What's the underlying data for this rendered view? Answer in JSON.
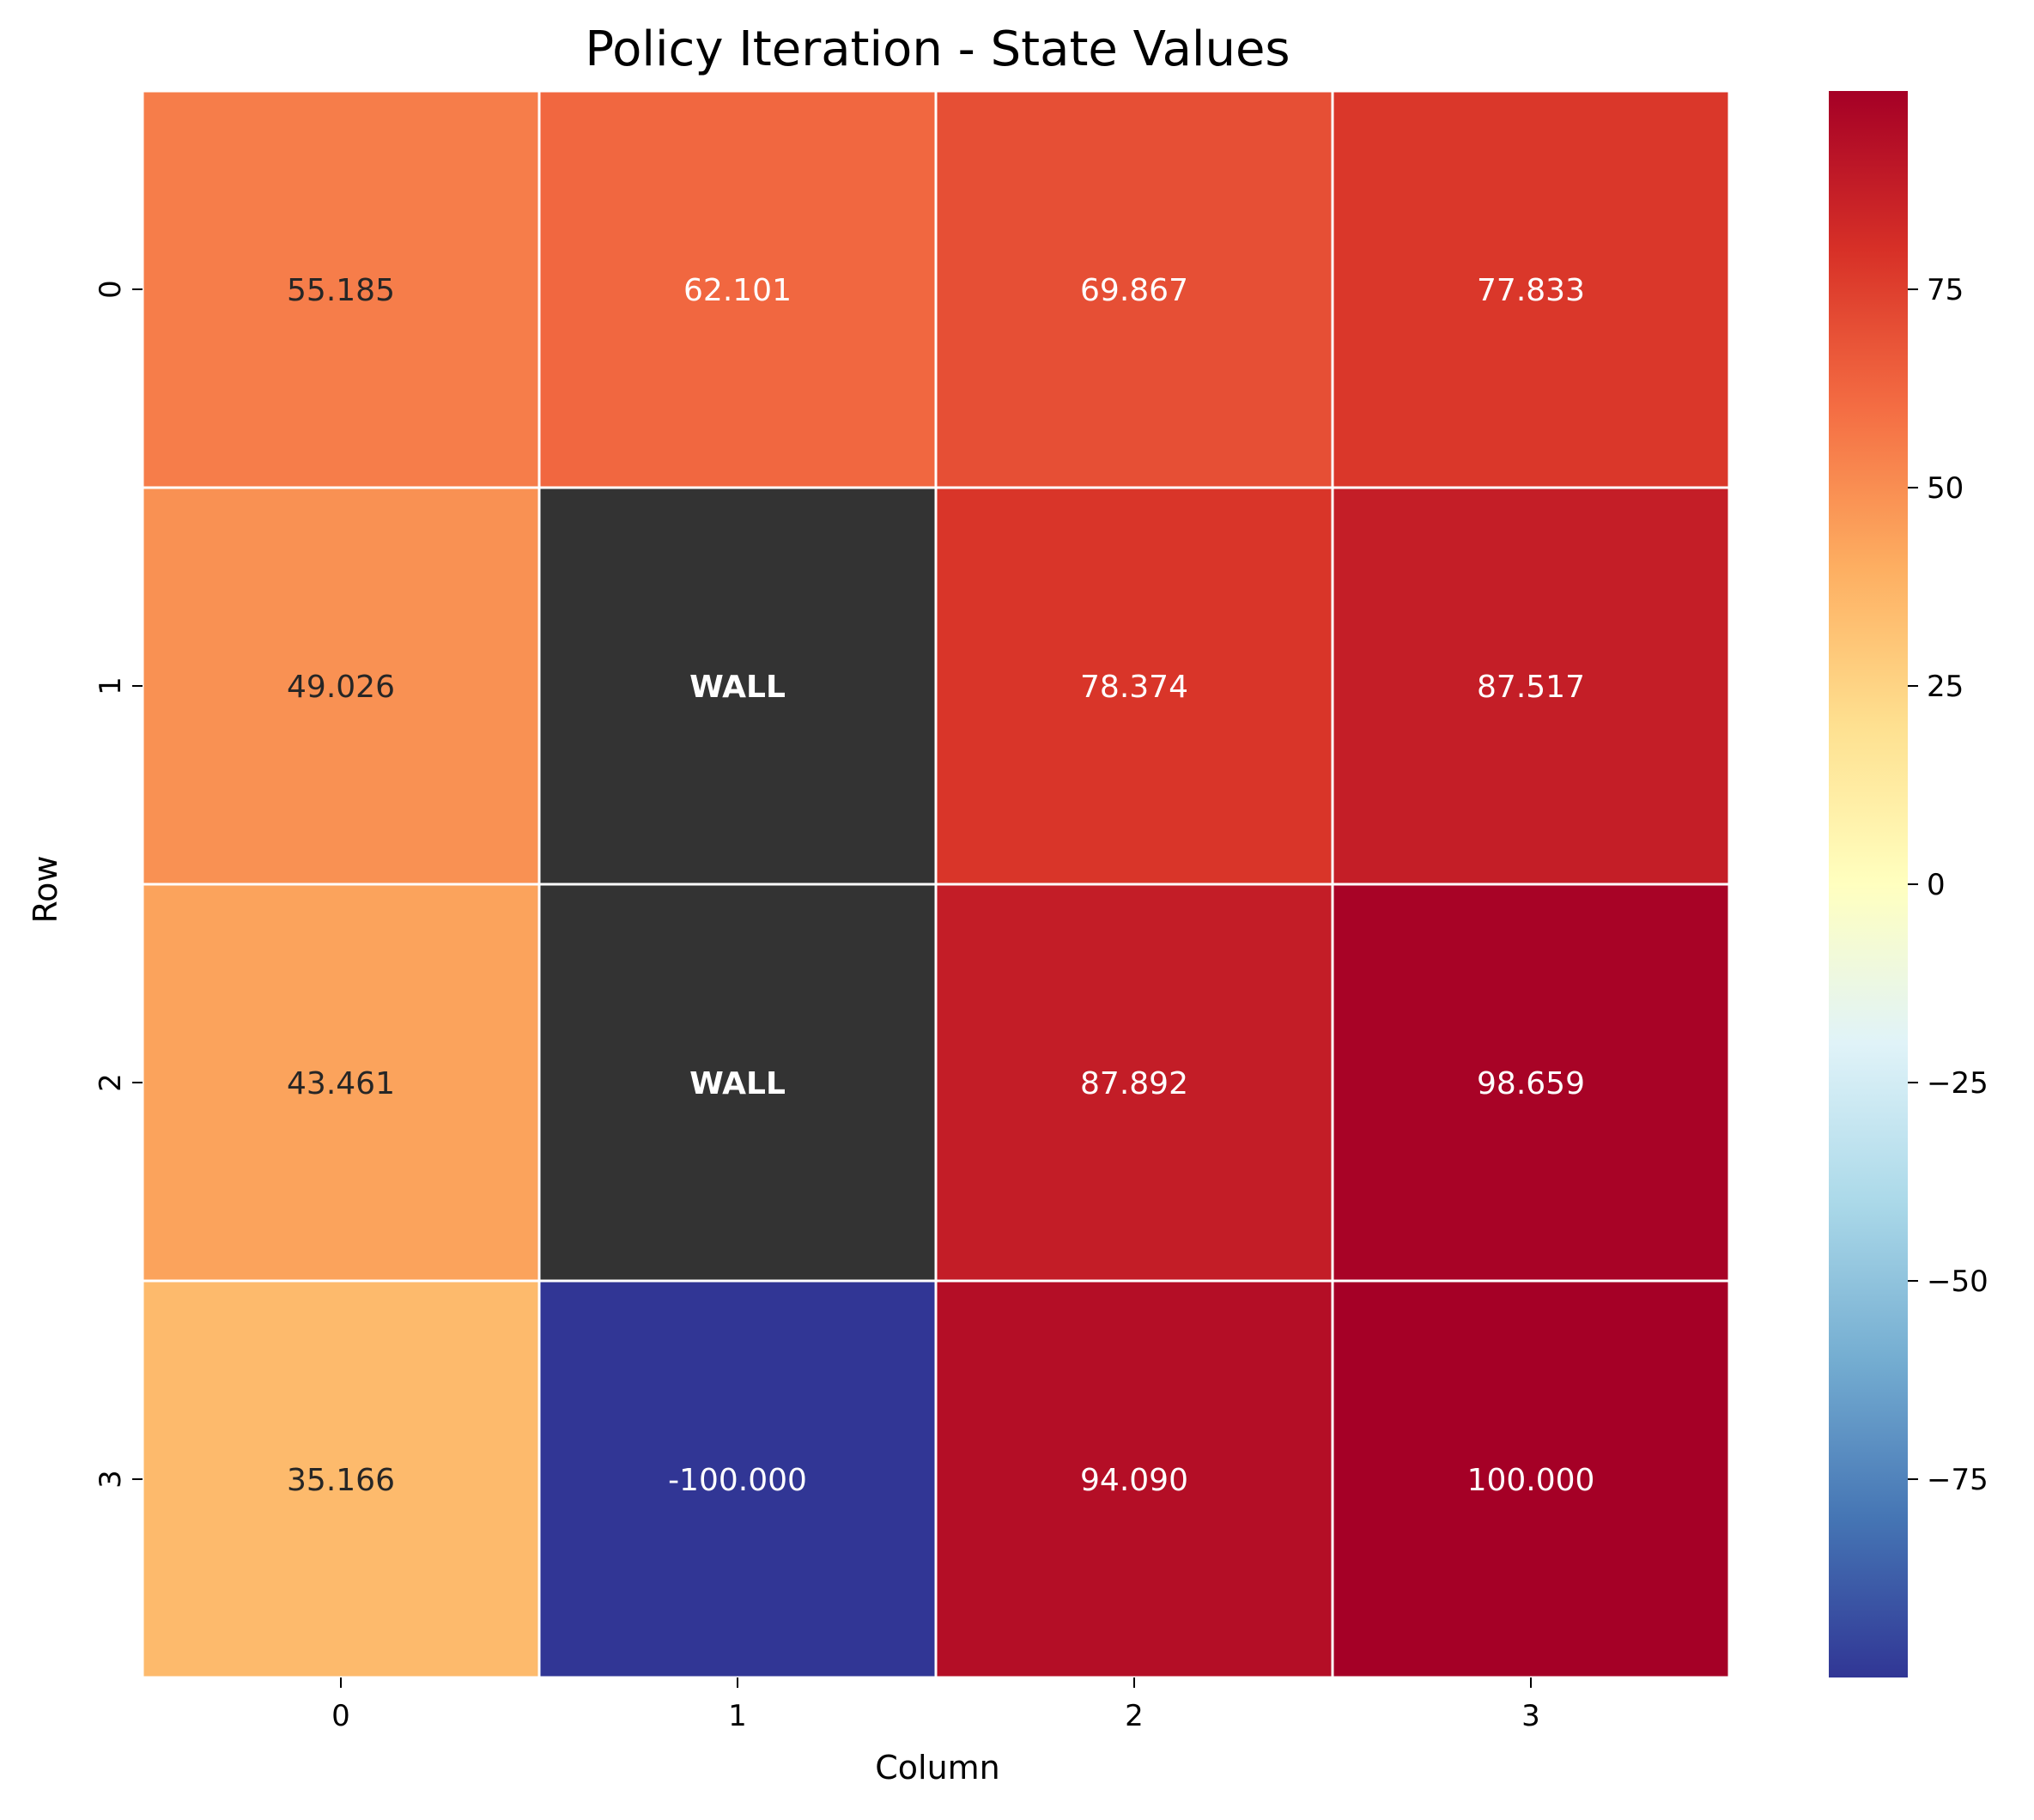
{
  "chart_data": {
    "type": "heatmap",
    "title": "Policy Iteration - State Values",
    "xlabel": "Column",
    "ylabel": "Row",
    "x_categories": [
      "0",
      "1",
      "2",
      "3"
    ],
    "y_categories": [
      "0",
      "1",
      "2",
      "3"
    ],
    "cells": [
      [
        {
          "value": 55.185,
          "label": "55.185"
        },
        {
          "value": 62.101,
          "label": "62.101"
        },
        {
          "value": 69.867,
          "label": "69.867"
        },
        {
          "value": 77.833,
          "label": "77.833"
        }
      ],
      [
        {
          "value": 49.026,
          "label": "49.026"
        },
        {
          "value": null,
          "label": "WALL",
          "wall": true
        },
        {
          "value": 78.374,
          "label": "78.374"
        },
        {
          "value": 87.517,
          "label": "87.517"
        }
      ],
      [
        {
          "value": 43.461,
          "label": "43.461"
        },
        {
          "value": null,
          "label": "WALL",
          "wall": true
        },
        {
          "value": 87.892,
          "label": "87.892"
        },
        {
          "value": 98.659,
          "label": "98.659"
        }
      ],
      [
        {
          "value": 35.166,
          "label": "35.166"
        },
        {
          "value": -100.0,
          "label": "-100.000"
        },
        {
          "value": 94.09,
          "label": "94.090"
        },
        {
          "value": 100.0,
          "label": "100.000"
        }
      ]
    ],
    "colormap": "RdYlBu_r",
    "color_range": [
      -100,
      100
    ],
    "wall_color": "#333333",
    "colorbar_ticks": [
      {
        "value": 75,
        "label": "75"
      },
      {
        "value": 50,
        "label": "50"
      },
      {
        "value": 25,
        "label": "25"
      },
      {
        "value": 0,
        "label": "0"
      },
      {
        "value": -25,
        "label": "−25"
      },
      {
        "value": -50,
        "label": "−50"
      },
      {
        "value": -75,
        "label": "−75"
      }
    ],
    "grid": false
  }
}
